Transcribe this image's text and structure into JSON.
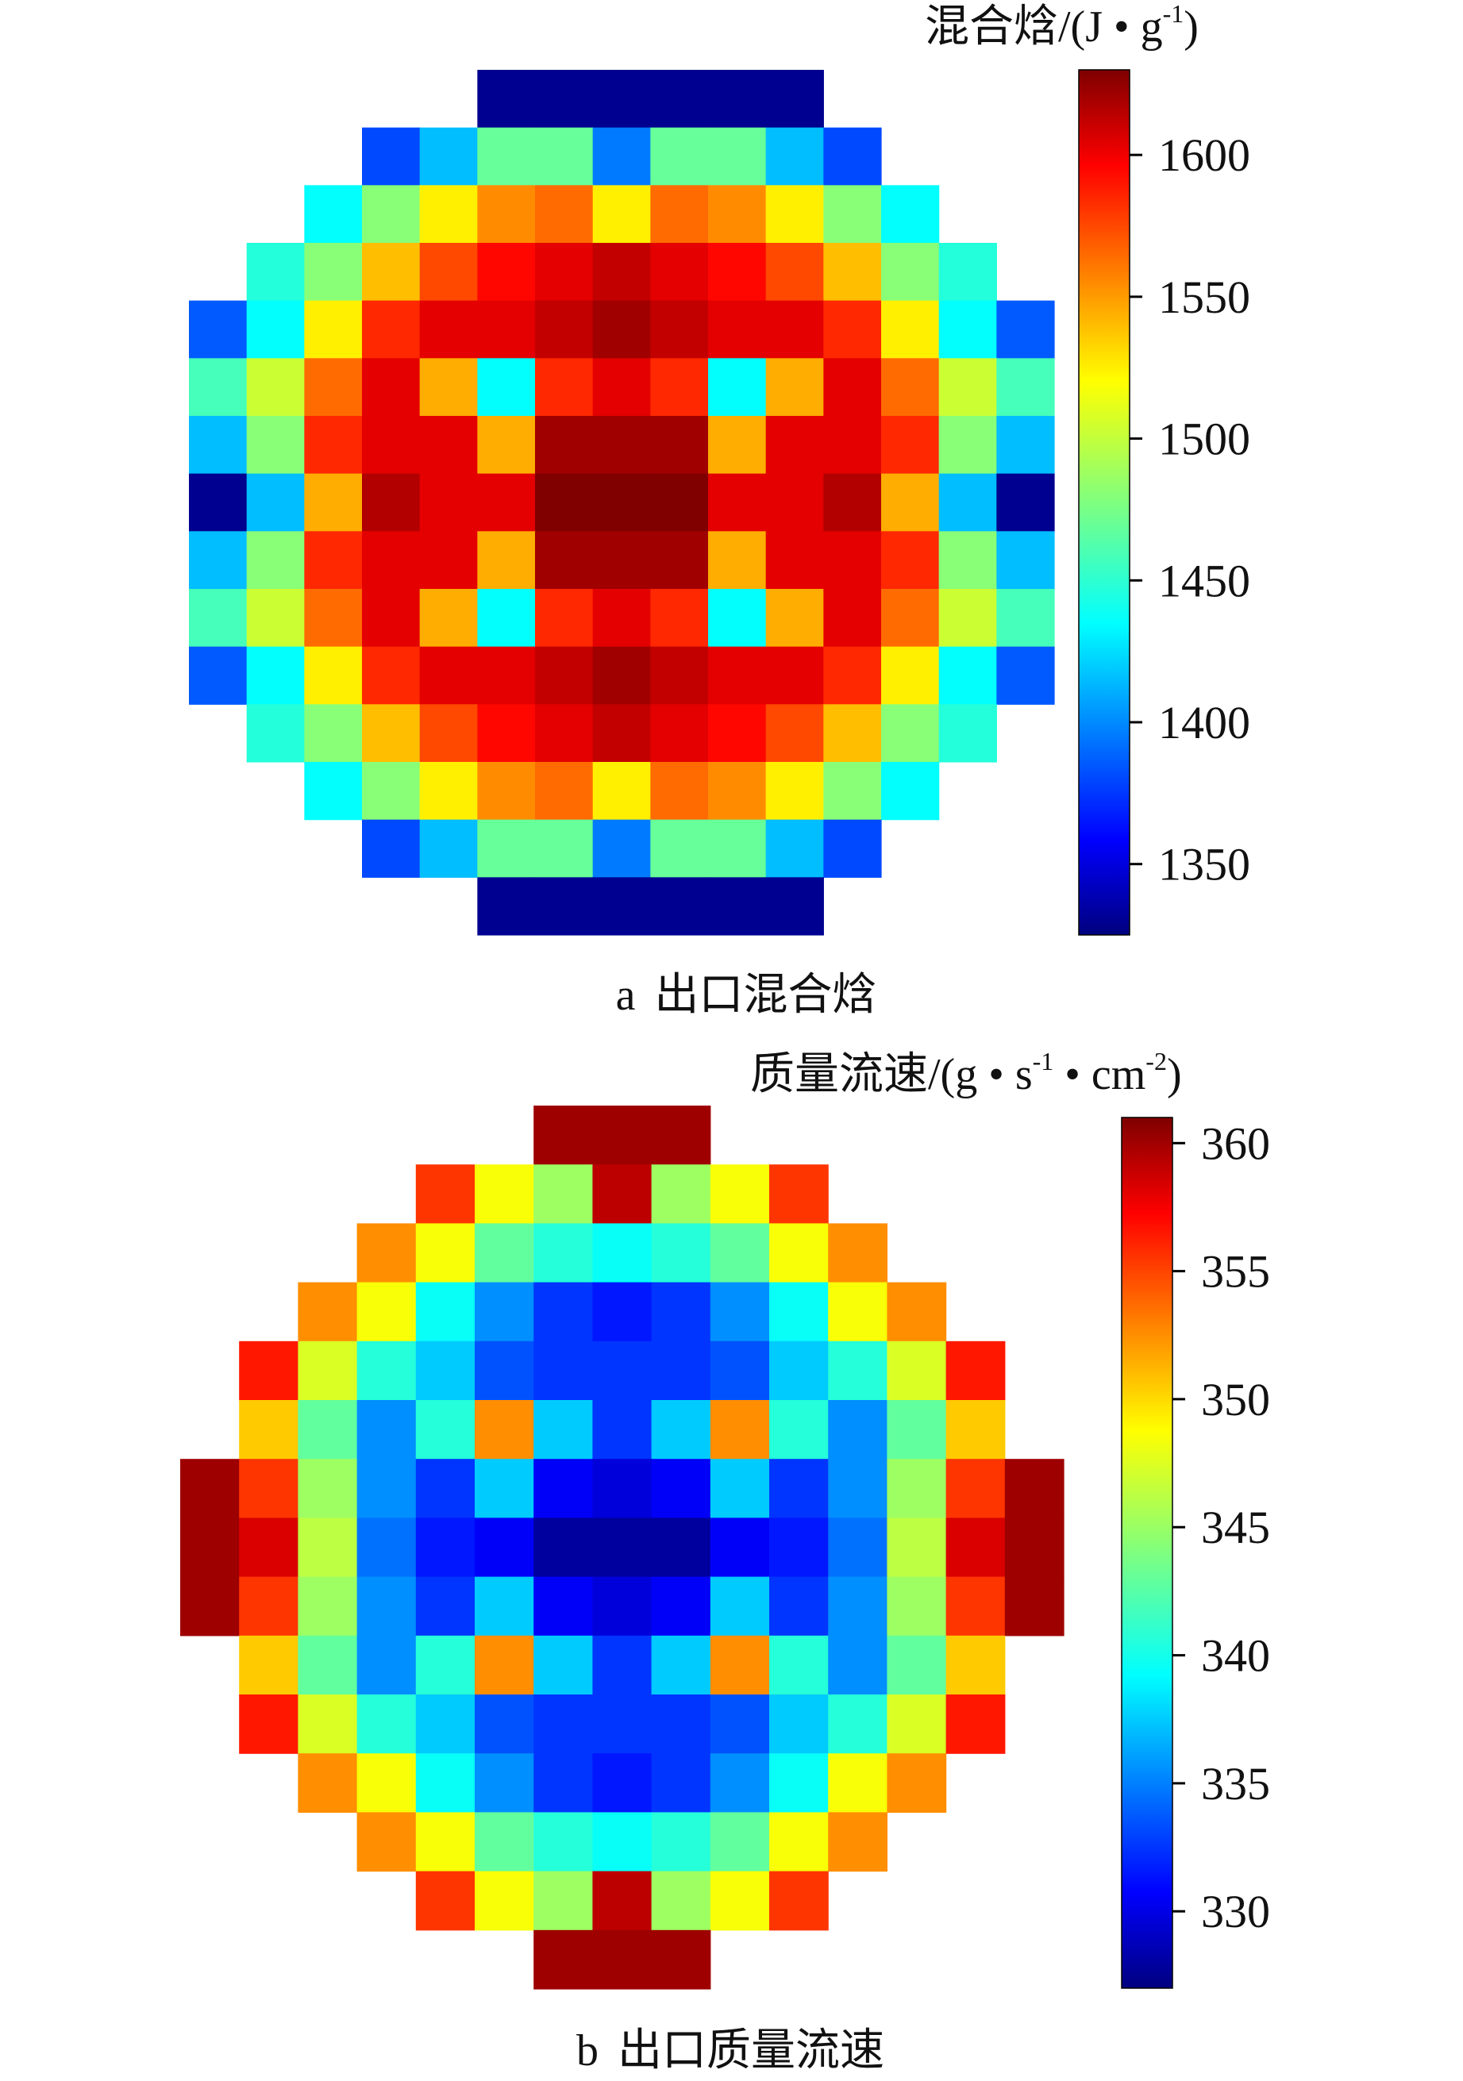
{
  "chart_data": [
    {
      "type": "heatmap",
      "grid_size": 15,
      "caption_label": "a",
      "caption_text": "出口混合焓",
      "colorbar": {
        "title": "混合焓/(J • g",
        "title_sup": "-1",
        "title_close": ")",
        "range": [
          1325,
          1630
        ],
        "ticks": [
          1350,
          1400,
          1450,
          1500,
          1550,
          1600
        ]
      },
      "values": [
        [
          null,
          null,
          null,
          null,
          null,
          1330,
          1330,
          1330,
          1330,
          1330,
          1330,
          null,
          null,
          null,
          null
        ],
        [
          null,
          null,
          null,
          1385,
          1420,
          1470,
          1470,
          1400,
          1470,
          1470,
          1420,
          1385,
          null,
          null,
          null
        ],
        [
          null,
          null,
          1440,
          1480,
          1520,
          1550,
          1560,
          1520,
          1560,
          1550,
          1520,
          1480,
          1440,
          null,
          null
        ],
        [
          null,
          1450,
          1480,
          1535,
          1570,
          1590,
          1600,
          1610,
          1600,
          1590,
          1570,
          1535,
          1480,
          1450,
          null
        ],
        [
          1390,
          1440,
          1520,
          1580,
          1600,
          1600,
          1610,
          1620,
          1610,
          1600,
          1600,
          1580,
          1520,
          1440,
          1390
        ],
        [
          1460,
          1500,
          1560,
          1600,
          1540,
          1440,
          1580,
          1600,
          1580,
          1440,
          1540,
          1600,
          1560,
          1500,
          1460
        ],
        [
          1420,
          1480,
          1580,
          1600,
          1600,
          1540,
          1620,
          1620,
          1620,
          1540,
          1600,
          1600,
          1580,
          1480,
          1420
        ],
        [
          1330,
          1420,
          1540,
          1615,
          1600,
          1600,
          1630,
          1630,
          1630,
          1600,
          1600,
          1615,
          1540,
          1420,
          1330
        ],
        [
          1420,
          1480,
          1580,
          1600,
          1600,
          1540,
          1620,
          1620,
          1620,
          1540,
          1600,
          1600,
          1580,
          1480,
          1420
        ],
        [
          1460,
          1500,
          1560,
          1600,
          1540,
          1440,
          1580,
          1600,
          1580,
          1440,
          1540,
          1600,
          1560,
          1500,
          1460
        ],
        [
          1390,
          1440,
          1520,
          1580,
          1600,
          1600,
          1610,
          1620,
          1610,
          1600,
          1600,
          1580,
          1520,
          1440,
          1390
        ],
        [
          null,
          1450,
          1480,
          1535,
          1570,
          1590,
          1600,
          1610,
          1600,
          1590,
          1570,
          1535,
          1480,
          1450,
          null
        ],
        [
          null,
          null,
          1440,
          1480,
          1520,
          1550,
          1560,
          1520,
          1560,
          1550,
          1520,
          1480,
          1440,
          null,
          null
        ],
        [
          null,
          null,
          null,
          1385,
          1420,
          1470,
          1470,
          1400,
          1470,
          1470,
          1420,
          1385,
          null,
          null,
          null
        ],
        [
          null,
          null,
          null,
          null,
          null,
          1330,
          1330,
          1330,
          1330,
          1330,
          1330,
          null,
          null,
          null,
          null
        ]
      ]
    },
    {
      "type": "heatmap",
      "grid_size": 15,
      "caption_label": "b",
      "caption_text": "出口质量流速",
      "colorbar": {
        "title": "质量流速/(g • s",
        "title_sup": "-1",
        "title_mid": " • cm",
        "title_sup2": "-2",
        "title_close": ")",
        "range": [
          327,
          361
        ],
        "ticks": [
          330,
          335,
          340,
          345,
          350,
          355,
          360
        ]
      },
      "values": [
        [
          null,
          null,
          null,
          null,
          null,
          null,
          360,
          360,
          360,
          null,
          null,
          null,
          null,
          null,
          null
        ],
        [
          null,
          null,
          null,
          null,
          355,
          348,
          345,
          359,
          345,
          348,
          355,
          null,
          null,
          null,
          null
        ],
        [
          null,
          null,
          null,
          352,
          348,
          343,
          341,
          340,
          341,
          343,
          348,
          352,
          null,
          null,
          null
        ],
        [
          null,
          null,
          352,
          348,
          340,
          336,
          333,
          332,
          333,
          336,
          340,
          348,
          352,
          null,
          null
        ],
        [
          null,
          356,
          347,
          341,
          338,
          334,
          333,
          333,
          333,
          334,
          338,
          341,
          347,
          356,
          null
        ],
        [
          null,
          350,
          343,
          336,
          341,
          352,
          338,
          333,
          338,
          352,
          341,
          336,
          343,
          350,
          null
        ],
        [
          360,
          355,
          345,
          336,
          333,
          338,
          331,
          330,
          331,
          338,
          333,
          336,
          345,
          355,
          360
        ],
        [
          360,
          358,
          346,
          335,
          332,
          331,
          328,
          328,
          328,
          331,
          332,
          335,
          346,
          358,
          360
        ],
        [
          360,
          355,
          345,
          336,
          333,
          338,
          331,
          330,
          331,
          338,
          333,
          336,
          345,
          355,
          360
        ],
        [
          null,
          350,
          343,
          336,
          341,
          352,
          338,
          333,
          338,
          352,
          341,
          336,
          343,
          350,
          null
        ],
        [
          null,
          356,
          347,
          341,
          338,
          334,
          333,
          333,
          333,
          334,
          338,
          341,
          347,
          356,
          null
        ],
        [
          null,
          null,
          352,
          348,
          340,
          336,
          333,
          332,
          333,
          336,
          340,
          348,
          352,
          null,
          null
        ],
        [
          null,
          null,
          null,
          352,
          348,
          343,
          341,
          340,
          341,
          343,
          348,
          352,
          null,
          null,
          null
        ],
        [
          null,
          null,
          null,
          null,
          355,
          348,
          345,
          359,
          345,
          348,
          355,
          null,
          null,
          null,
          null
        ],
        [
          null,
          null,
          null,
          null,
          null,
          null,
          360,
          360,
          360,
          null,
          null,
          null,
          null,
          null,
          null
        ]
      ]
    }
  ]
}
